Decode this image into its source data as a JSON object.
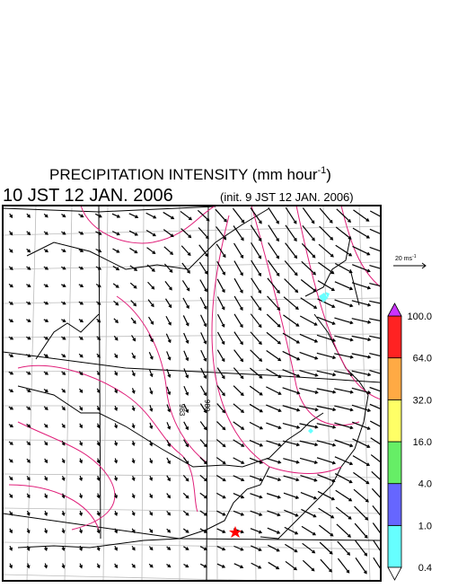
{
  "title": {
    "main": "PRECIPITATION INTENSITY (mm hour",
    "sup": "-1",
    "end": ")"
  },
  "valid_time": "10 JST 12 JAN. 2006",
  "init_time": "(init. 9 JST 12 JAN. 2006)",
  "wind_reference": {
    "main": "20 ms",
    "sup": "-1"
  },
  "contour_labels": [
    "983",
    "980"
  ],
  "colorbar": {
    "levels": [
      {
        "value": 0.4,
        "label": "0.4"
      },
      {
        "value": 1,
        "label": "1.0"
      },
      {
        "value": 4,
        "label": "4.0"
      },
      {
        "value": 16,
        "label": "16.0"
      },
      {
        "value": 32,
        "label": "32.0"
      },
      {
        "value": 64,
        "label": "64.0"
      },
      {
        "value": 100,
        "label": "100.0"
      }
    ],
    "colors": [
      "#66ffff",
      "#6666ff",
      "#66ee66",
      "#ffff66",
      "#ffaa44",
      "#ff2222"
    ],
    "under_color": "#ffffff",
    "over_color": "#cc33ff"
  }
}
